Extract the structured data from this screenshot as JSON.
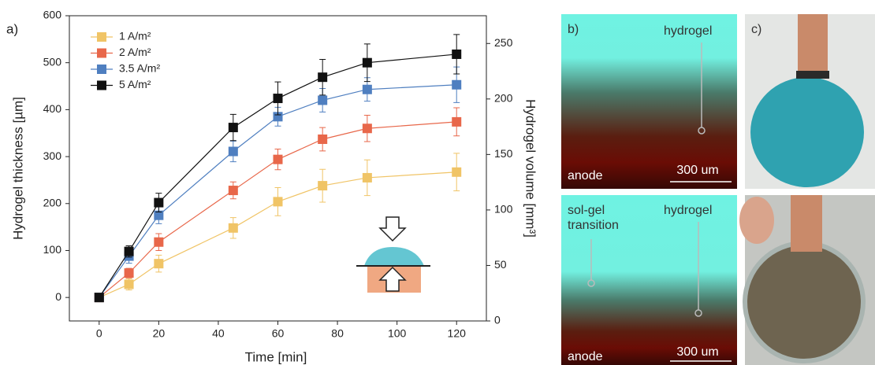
{
  "chart_data": {
    "type": "line",
    "xlabel": "Time [min]",
    "ylabel": "Hydrogel thickness [µm]",
    "y2label": "Hydrogel volume [mm³]",
    "x": [
      0,
      10,
      20,
      45,
      60,
      75,
      90,
      120
    ],
    "xlim": [
      -10,
      130
    ],
    "xticks": [
      0,
      20,
      40,
      60,
      80,
      100,
      120
    ],
    "ylim": [
      -50,
      600
    ],
    "yticks": [
      0,
      100,
      200,
      300,
      400,
      500,
      600
    ],
    "y2lim": [
      0,
      275
    ],
    "y2ticks": [
      0,
      50,
      100,
      150,
      200,
      250
    ],
    "legend": "upper left",
    "series": [
      {
        "name": "1 A/m²",
        "color": "#f0c466",
        "values": [
          0,
          28,
          72,
          148,
          204,
          238,
          255,
          267
        ],
        "errors": [
          0,
          12,
          18,
          22,
          30,
          35,
          38,
          40
        ]
      },
      {
        "name": "2 A/m²",
        "color": "#e8674a",
        "values": [
          0,
          52,
          118,
          228,
          294,
          337,
          360,
          374
        ],
        "errors": [
          0,
          10,
          18,
          18,
          22,
          25,
          28,
          30
        ]
      },
      {
        "name": "3.5 A/m²",
        "color": "#4f7fc0",
        "values": [
          0,
          88,
          175,
          311,
          385,
          420,
          443,
          453
        ],
        "errors": [
          0,
          15,
          18,
          22,
          20,
          25,
          25,
          38
        ]
      },
      {
        "name": "5 A/m²",
        "color": "#111111",
        "values": [
          0,
          98,
          202,
          362,
          424,
          469,
          500,
          518
        ],
        "errors": [
          0,
          12,
          20,
          28,
          35,
          38,
          40,
          42
        ]
      }
    ]
  },
  "panel_labels": {
    "a": "a)",
    "b": "b)",
    "c": "c)"
  },
  "micrographs": [
    {
      "hydrogel": "hydrogel",
      "anode": "anode",
      "scale_bar": "300 um"
    },
    {
      "transition": "sol-gel transition",
      "hydrogel": "hydrogel",
      "anode": "anode",
      "scale_bar": "300 um"
    }
  ]
}
